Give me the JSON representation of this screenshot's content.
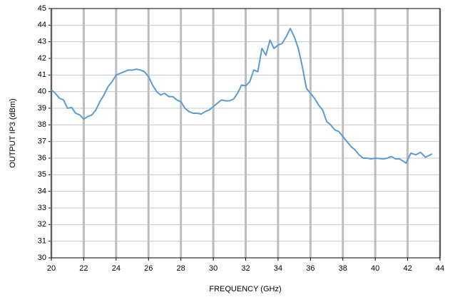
{
  "chart_data": {
    "type": "line",
    "xlabel": "FREQUENCY (GHz)",
    "ylabel": "OUTPUT IP3 (dBm)",
    "xlim": [
      20,
      44
    ],
    "xticks": [
      20,
      22,
      24,
      26,
      28,
      30,
      32,
      34,
      36,
      38,
      40,
      42,
      44
    ],
    "ylim": [
      30,
      45
    ],
    "yticks": [
      30,
      31,
      32,
      33,
      34,
      35,
      36,
      37,
      38,
      39,
      40,
      41,
      42,
      43,
      44,
      45
    ],
    "grid": true,
    "series": [
      {
        "color": "#5b9bd5",
        "x": [
          20.0,
          20.25,
          20.5,
          20.75,
          21.0,
          21.25,
          21.5,
          21.75,
          22.0,
          22.25,
          22.5,
          22.75,
          23.0,
          23.25,
          23.5,
          23.75,
          24.0,
          24.25,
          24.5,
          24.75,
          25.0,
          25.25,
          25.5,
          25.75,
          26.0,
          26.25,
          26.5,
          26.75,
          27.0,
          27.25,
          27.5,
          27.75,
          28.0,
          28.25,
          28.5,
          28.75,
          29.0,
          29.25,
          29.5,
          29.75,
          30.0,
          30.25,
          30.5,
          30.75,
          31.0,
          31.25,
          31.5,
          31.75,
          32.0,
          32.25,
          32.5,
          32.75,
          33.0,
          33.25,
          33.5,
          33.75,
          34.0,
          34.25,
          34.5,
          34.75,
          35.0,
          35.25,
          35.5,
          35.75,
          36.0,
          36.25,
          36.5,
          36.75,
          37.0,
          37.25,
          37.5,
          37.75,
          38.0,
          38.25,
          38.5,
          38.75,
          39.0,
          39.25,
          39.5,
          39.75,
          40.0,
          40.5,
          40.75,
          41.0,
          41.25,
          41.5,
          41.75,
          41.9,
          42.2,
          42.5,
          42.8,
          43.1,
          43.5
        ],
        "values": [
          40.1,
          39.9,
          39.6,
          39.5,
          39.0,
          39.05,
          38.7,
          38.6,
          38.35,
          38.5,
          38.6,
          38.9,
          39.4,
          39.8,
          40.3,
          40.6,
          41.0,
          41.1,
          41.2,
          41.3,
          41.3,
          41.35,
          41.3,
          41.2,
          40.9,
          40.4,
          40.0,
          39.8,
          39.9,
          39.7,
          39.7,
          39.5,
          39.4,
          39.0,
          38.8,
          38.7,
          38.7,
          38.65,
          38.8,
          38.9,
          39.1,
          39.3,
          39.5,
          39.45,
          39.45,
          39.55,
          39.9,
          40.4,
          40.35,
          40.6,
          41.3,
          41.2,
          42.6,
          42.2,
          43.1,
          42.6,
          42.8,
          42.9,
          43.3,
          43.8,
          43.3,
          42.6,
          41.5,
          40.2,
          39.9,
          39.6,
          39.2,
          38.9,
          38.2,
          38.0,
          37.7,
          37.6,
          37.3,
          37.0,
          36.7,
          36.5,
          36.2,
          36.0,
          36.0,
          35.95,
          36.0,
          35.95,
          36.0,
          36.1,
          35.95,
          35.95,
          35.8,
          35.7,
          36.3,
          36.2,
          36.35,
          36.05,
          36.25
        ]
      }
    ]
  }
}
